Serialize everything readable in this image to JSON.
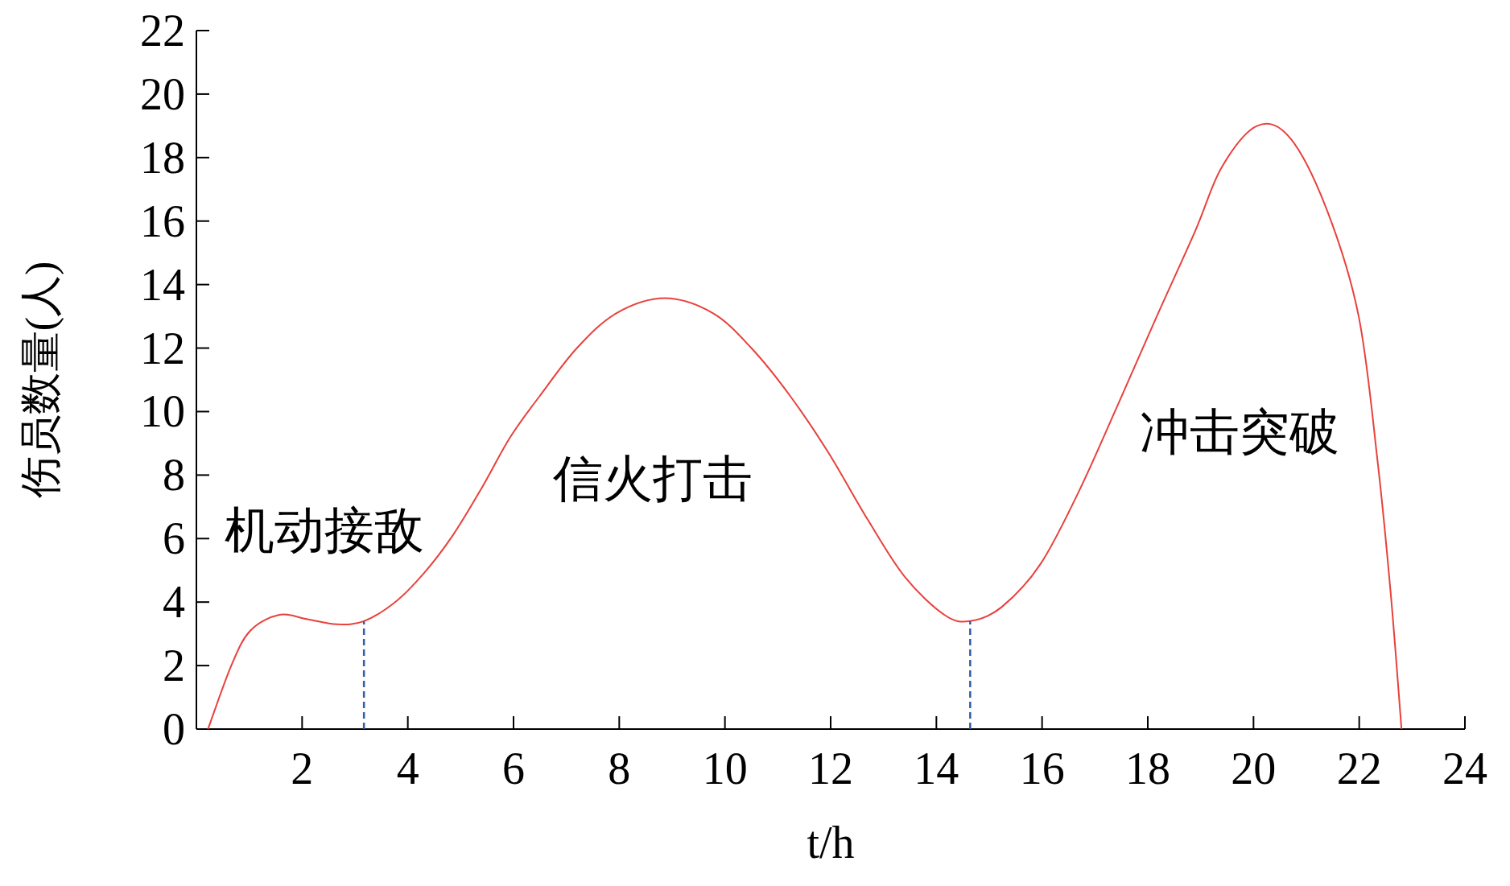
{
  "chart_data": {
    "type": "line",
    "xlabel": "t/h",
    "ylabel": "伤员数量(人)",
    "xlim": [
      0,
      24
    ],
    "xticks": [
      2,
      4,
      6,
      8,
      10,
      12,
      14,
      16,
      18,
      20,
      22,
      24
    ],
    "ylim": [
      0,
      22
    ],
    "yticks": [
      0,
      2,
      4,
      6,
      8,
      10,
      12,
      14,
      16,
      18,
      20,
      22
    ],
    "grid": false,
    "marker": "none",
    "line_style": "solid",
    "series": [
      {
        "color": "#e8413c",
        "x": [
          0.22,
          0.66,
          1.02,
          1.57,
          2.1,
          2.66,
          3.17,
          3.76,
          4.3,
          4.85,
          5.4,
          5.94,
          6.5,
          7.2,
          7.95,
          8.86,
          9.77,
          10.5,
          11.23,
          11.96,
          12.7,
          13.4,
          14.15,
          14.64,
          15.24,
          15.97,
          16.7,
          17.43,
          18.16,
          18.9,
          19.4,
          20.07,
          20.7,
          21.4,
          21.99,
          22.35,
          22.6,
          22.8
        ],
        "values": [
          0,
          2.0,
          3.1,
          3.6,
          3.46,
          3.3,
          3.4,
          4.0,
          4.9,
          6.1,
          7.6,
          9.2,
          10.5,
          12.0,
          13.1,
          13.57,
          13.1,
          12.0,
          10.5,
          8.7,
          6.6,
          4.8,
          3.6,
          3.4,
          3.85,
          5.2,
          7.5,
          10.2,
          12.96,
          15.7,
          17.7,
          19.0,
          18.6,
          16.3,
          13.0,
          8.4,
          4.2,
          0
        ]
      }
    ],
    "ref_lines": [
      {
        "axis": "x",
        "value": 3.17,
        "color": "#2e5fa8",
        "line_style": "dashed"
      },
      {
        "axis": "x",
        "value": 14.64,
        "color": "#2e5fa8",
        "line_style": "dashed"
      }
    ],
    "annotations": [
      "机动接敌",
      "信火打击",
      "冲击突破"
    ]
  }
}
